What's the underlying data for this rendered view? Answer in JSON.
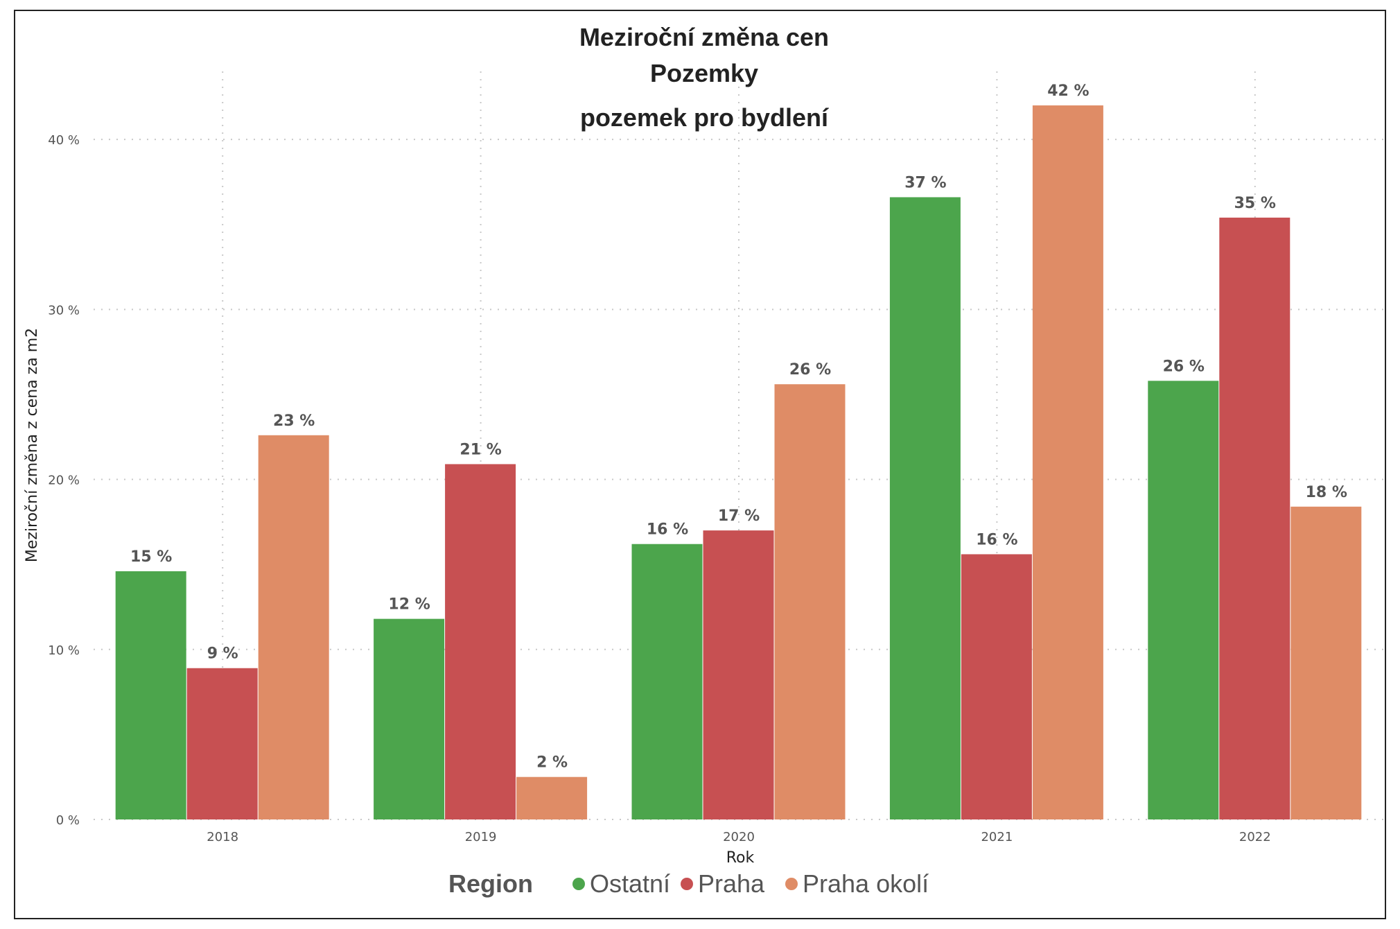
{
  "chart_data": {
    "type": "bar",
    "title": [
      "Meziroční změna cen",
      "Pozemky",
      "pozemek pro bydlení"
    ],
    "xlabel": "Rok",
    "ylabel": "Meziroční změna z cena za m2",
    "categories": [
      "2018",
      "2019",
      "2020",
      "2021",
      "2022"
    ],
    "ylim": [
      0,
      44
    ],
    "yticks": [
      0,
      10,
      20,
      30,
      40
    ],
    "ytick_suffix": " %",
    "grid": true,
    "legend": {
      "title": "Region",
      "placement": "bottom"
    },
    "series": [
      {
        "name": "Ostatní",
        "color": "#4ca54c",
        "values": [
          14.6,
          11.8,
          16.2,
          36.6,
          25.8
        ],
        "labels": [
          "15 %",
          "12 %",
          "16 %",
          "37 %",
          "26 %"
        ]
      },
      {
        "name": "Praha",
        "color": "#c75052",
        "values": [
          8.9,
          20.9,
          17.0,
          15.6,
          35.4
        ],
        "labels": [
          "9 %",
          "21 %",
          "17 %",
          "16 %",
          "35 %"
        ]
      },
      {
        "name": "Praha okolí",
        "color": "#df8c66",
        "values": [
          22.6,
          2.5,
          25.6,
          42.0,
          18.4
        ],
        "labels": [
          "23 %",
          "2 %",
          "26 %",
          "42 %",
          "18 %"
        ]
      }
    ]
  }
}
